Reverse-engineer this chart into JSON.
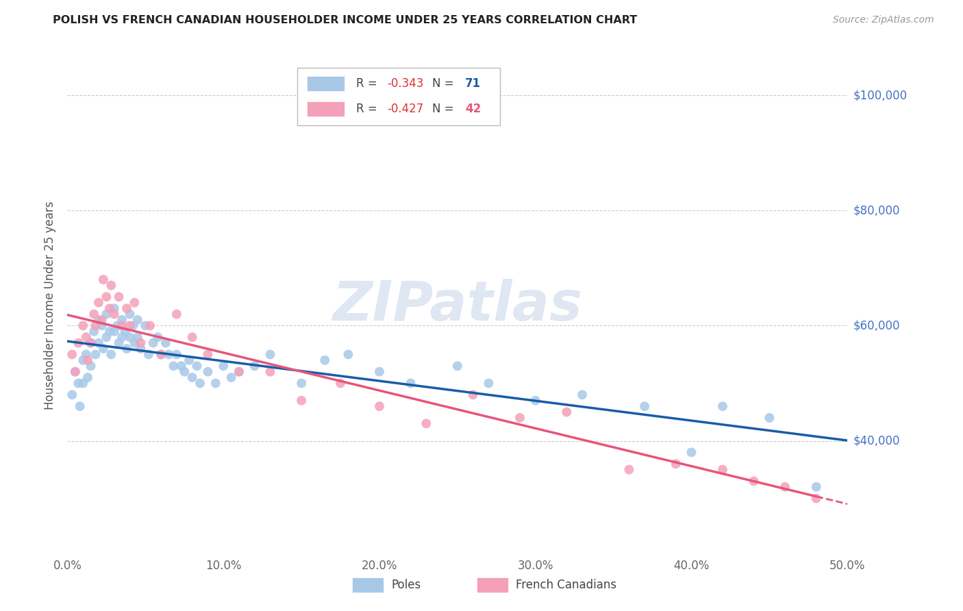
{
  "title": "POLISH VS FRENCH CANADIAN HOUSEHOLDER INCOME UNDER 25 YEARS CORRELATION CHART",
  "source": "Source: ZipAtlas.com",
  "ylabel": "Householder Income Under 25 years",
  "xlabel_ticks": [
    "0.0%",
    "10.0%",
    "20.0%",
    "30.0%",
    "40.0%",
    "50.0%"
  ],
  "ytick_labels": [
    "$40,000",
    "$60,000",
    "$80,000",
    "$100,000"
  ],
  "ytick_values": [
    40000,
    60000,
    80000,
    100000
  ],
  "xlim": [
    0.0,
    0.5
  ],
  "ylim": [
    20000,
    107000
  ],
  "poles_R": "-0.343",
  "poles_N": "71",
  "french_R": "-0.427",
  "french_N": "42",
  "poles_color": "#a8c8e8",
  "french_color": "#f4a0b8",
  "trend_poles_color": "#1a5ca8",
  "trend_french_color": "#e8557a",
  "watermark_text": "ZIPatlas",
  "poles_x": [
    0.003,
    0.005,
    0.007,
    0.008,
    0.01,
    0.01,
    0.012,
    0.013,
    0.015,
    0.015,
    0.017,
    0.018,
    0.02,
    0.02,
    0.022,
    0.023,
    0.025,
    0.025,
    0.027,
    0.028,
    0.03,
    0.03,
    0.032,
    0.033,
    0.035,
    0.035,
    0.037,
    0.038,
    0.04,
    0.04,
    0.042,
    0.043,
    0.045,
    0.045,
    0.047,
    0.05,
    0.052,
    0.055,
    0.058,
    0.06,
    0.063,
    0.065,
    0.068,
    0.07,
    0.073,
    0.075,
    0.078,
    0.08,
    0.083,
    0.085,
    0.09,
    0.095,
    0.1,
    0.105,
    0.11,
    0.12,
    0.13,
    0.15,
    0.165,
    0.18,
    0.2,
    0.22,
    0.25,
    0.27,
    0.3,
    0.33,
    0.37,
    0.4,
    0.42,
    0.45,
    0.48
  ],
  "poles_y": [
    48000,
    52000,
    50000,
    46000,
    54000,
    50000,
    55000,
    51000,
    57000,
    53000,
    59000,
    55000,
    61000,
    57000,
    60000,
    56000,
    62000,
    58000,
    59000,
    55000,
    63000,
    59000,
    60000,
    57000,
    61000,
    58000,
    59000,
    56000,
    62000,
    58000,
    60000,
    57000,
    61000,
    58000,
    56000,
    60000,
    55000,
    57000,
    58000,
    55000,
    57000,
    55000,
    53000,
    55000,
    53000,
    52000,
    54000,
    51000,
    53000,
    50000,
    52000,
    50000,
    53000,
    51000,
    52000,
    53000,
    55000,
    50000,
    54000,
    55000,
    52000,
    50000,
    53000,
    50000,
    47000,
    48000,
    46000,
    38000,
    46000,
    44000,
    32000
  ],
  "french_x": [
    0.003,
    0.005,
    0.007,
    0.01,
    0.012,
    0.013,
    0.015,
    0.017,
    0.018,
    0.02,
    0.022,
    0.023,
    0.025,
    0.027,
    0.028,
    0.03,
    0.033,
    0.035,
    0.038,
    0.04,
    0.043,
    0.047,
    0.053,
    0.06,
    0.07,
    0.08,
    0.09,
    0.11,
    0.13,
    0.15,
    0.175,
    0.2,
    0.23,
    0.26,
    0.29,
    0.32,
    0.36,
    0.39,
    0.42,
    0.44,
    0.46,
    0.48
  ],
  "french_y": [
    55000,
    52000,
    57000,
    60000,
    58000,
    54000,
    57000,
    62000,
    60000,
    64000,
    61000,
    68000,
    65000,
    63000,
    67000,
    62000,
    65000,
    60000,
    63000,
    60000,
    64000,
    57000,
    60000,
    55000,
    62000,
    58000,
    55000,
    52000,
    52000,
    47000,
    50000,
    46000,
    43000,
    48000,
    44000,
    45000,
    35000,
    36000,
    35000,
    33000,
    32000,
    30000
  ]
}
